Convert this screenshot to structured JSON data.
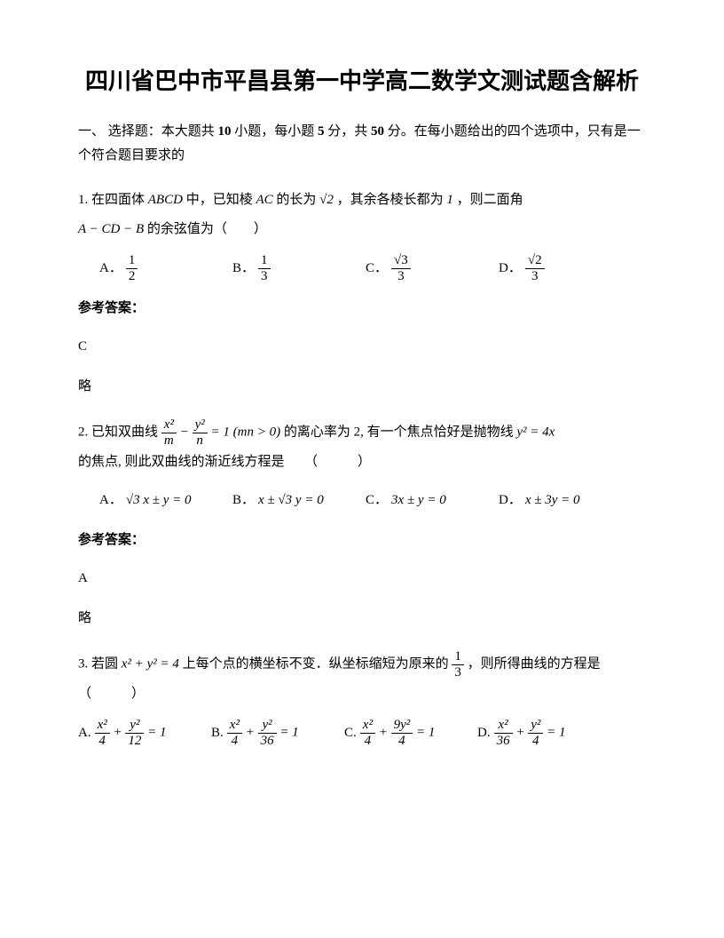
{
  "title": "四川省巴中市平昌县第一中学高二数学文测试题含解析",
  "section_header": {
    "prefix": "一、 选择题：本大题共 ",
    "count1": "10",
    "mid1": " 小题，每小题 ",
    "count2": "5",
    "mid2": " 分，共 ",
    "count3": "50",
    "suffix": " 分。在每小题给出的四个选项中，只有是一个符合题目要求的"
  },
  "q1": {
    "num": "1. ",
    "text_a": "在四面体 ",
    "abcd": "ABCD",
    "text_b": " 中，已知棱 ",
    "ac": "AC",
    "text_c": " 的长为 ",
    "sqrt2": "√2",
    "text_d": " ，其余各棱长都为 ",
    "one": "1",
    "text_e": " ，则二面角",
    "angle": "A − CD − B",
    "text_f": " 的余弦值为（　　）",
    "opts": {
      "a_label": "A．",
      "a_num": "1",
      "a_den": "2",
      "b_label": "B．",
      "b_num": "1",
      "b_den": "3",
      "c_label": "C．",
      "c_num": "√3",
      "c_den": "3",
      "d_label": "D．",
      "d_num": "√2",
      "d_den": "3"
    },
    "answer_label": "参考答案：",
    "answer": "C",
    "note": "略"
  },
  "q2": {
    "num": "2. ",
    "text_a": "已知双曲线 ",
    "eq": "x²/m − y²/n = 1 (mn > 0)",
    "text_b": " 的离心率为 2, 有一个焦点恰好是抛物线 ",
    "parab": "y² = 4x",
    "text_c": "的焦点, 则此双曲线的渐近线方程是　　（　　　）",
    "opts": {
      "a_label": "A．",
      "a_eq": "√3 x ± y = 0",
      "b_label": "B．",
      "b_eq": "x ± √3 y = 0",
      "c_label": "C．",
      "c_eq": "3x ± y = 0",
      "d_label": "D．",
      "d_eq": "x ± 3y = 0"
    },
    "answer_label": "参考答案：",
    "answer": "A",
    "note": "略"
  },
  "q3": {
    "num": "3. ",
    "text_a": "若圆 ",
    "circle": "x² + y² = 4",
    "text_b": " 上每个点的横坐标不变．纵坐标缩短为原来的 ",
    "frac_num": "1",
    "frac_den": "3",
    "text_c": " ，则所得曲线的方程是　（　　　）",
    "opts": {
      "a_label": "A. ",
      "a_eq": "x²/4 + y²/12 = 1",
      "b_label": "B. ",
      "b_eq": "x²/4 + y²/36 = 1",
      "c_label": "C. ",
      "c_eq": "x²/4 + 9y²/4 = 1",
      "d_label": "D. ",
      "d_eq": "x²/36 + y²/4 = 1"
    }
  },
  "colors": {
    "text": "#000000",
    "background": "#ffffff"
  }
}
